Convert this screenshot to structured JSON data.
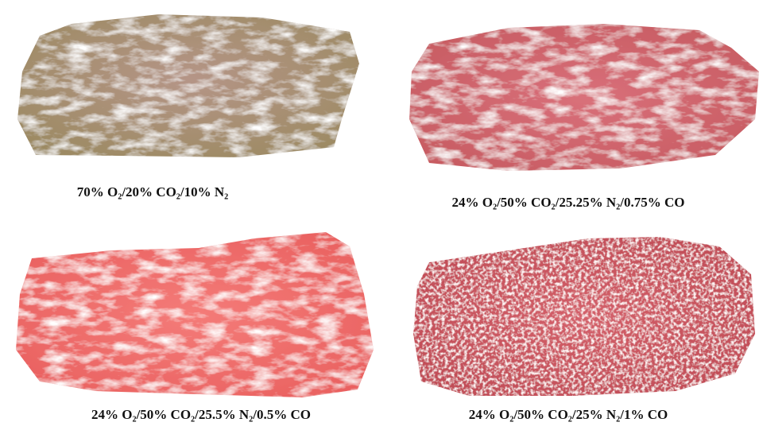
{
  "images": [
    {
      "caption": "70% O₂/20% CO₂/10% N₂"
    },
    {
      "caption": "24% O₂/50% CO₂/25.25% N₂/0.75% CO"
    },
    {
      "caption": "24% O₂/50% CO₂/25.5% N₂/0.5% CO"
    },
    {
      "caption": "24% O₂/50% CO₂/25% N₂/1% CO"
    }
  ]
}
